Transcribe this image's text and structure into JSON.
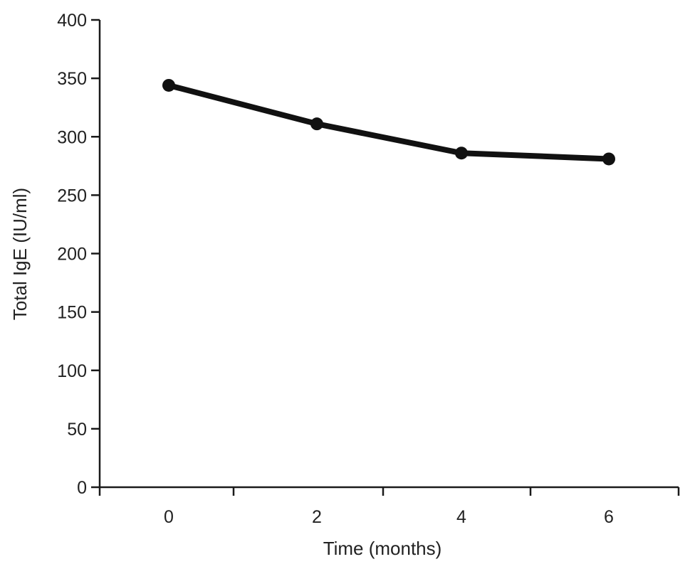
{
  "chart_data": {
    "type": "line",
    "title": "",
    "xlabel": "Time (months)",
    "ylabel": "Total IgE (IU/ml)",
    "x": [
      0,
      2,
      4,
      6
    ],
    "x_ticks": [
      0,
      2,
      4,
      6
    ],
    "x_minor_ticks": [
      1,
      3,
      5
    ],
    "ylim": [
      0,
      400
    ],
    "y_ticks": [
      0,
      50,
      100,
      150,
      200,
      250,
      300,
      350,
      400
    ],
    "series": [
      {
        "values": [
          344,
          311,
          286,
          281
        ],
        "color": "#111111"
      }
    ],
    "grid": false,
    "legend": "none"
  }
}
